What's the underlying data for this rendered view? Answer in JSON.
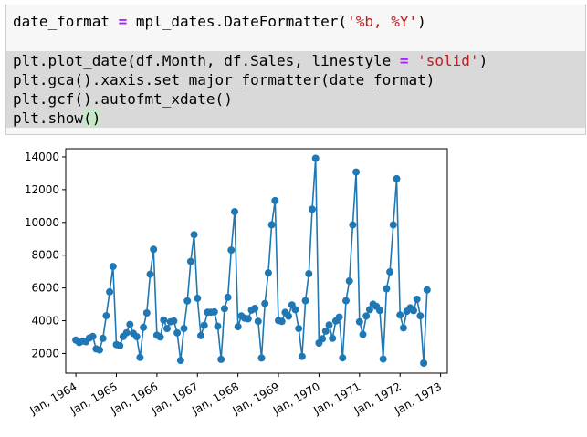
{
  "code_cell": {
    "lines": [
      {
        "parts": [
          {
            "t": "date_format ",
            "c": "plain"
          },
          {
            "t": "=",
            "c": "op"
          },
          {
            "t": " mpl_dates.DateFormatter(",
            "c": "plain"
          },
          {
            "t": "'%b, %Y'",
            "c": "str"
          },
          {
            "t": ")",
            "c": "plain"
          }
        ]
      },
      {
        "parts": []
      },
      {
        "parts": [
          {
            "t": "plt.plot_date(df.Month, df.Sales, linestyle ",
            "c": "plain"
          },
          {
            "t": "=",
            "c": "op"
          },
          {
            "t": " ",
            "c": "plain"
          },
          {
            "t": "'solid'",
            "c": "str"
          },
          {
            "t": ")",
            "c": "plain"
          }
        ]
      },
      {
        "parts": [
          {
            "t": "plt.gca().xaxis.set_major_formatter(date_format)",
            "c": "plain"
          }
        ]
      },
      {
        "parts": [
          {
            "t": "plt.gcf().autofmt_xdate()",
            "c": "plain"
          }
        ]
      },
      {
        "parts": [
          {
            "t": "plt.show",
            "c": "plain"
          },
          {
            "t": "()",
            "c": "paren"
          }
        ]
      }
    ]
  },
  "chart_data": {
    "type": "line",
    "title": "",
    "xlabel": "",
    "ylabel": "",
    "series_color": "#1f77b4",
    "x_tick_labels": [
      "Jan, 1964",
      "Jan, 1965",
      "Jan, 1966",
      "Jan, 1967",
      "Jan, 1968",
      "Jan, 1969",
      "Jan, 1970",
      "Jan, 1971",
      "Jan, 1972",
      "Jan, 1973"
    ],
    "y_ticks": [
      2000,
      4000,
      6000,
      8000,
      10000,
      12000,
      14000
    ],
    "ylim": [
      800,
      14500
    ],
    "xlim": [
      "1963-10",
      "1973-03"
    ],
    "x": [
      "1964-01",
      "1964-02",
      "1964-03",
      "1964-04",
      "1964-05",
      "1964-06",
      "1964-07",
      "1964-08",
      "1964-09",
      "1964-10",
      "1964-11",
      "1964-12",
      "1965-01",
      "1965-02",
      "1965-03",
      "1965-04",
      "1965-05",
      "1965-06",
      "1965-07",
      "1965-08",
      "1965-09",
      "1965-10",
      "1965-11",
      "1965-12",
      "1966-01",
      "1966-02",
      "1966-03",
      "1966-04",
      "1966-05",
      "1966-06",
      "1966-07",
      "1966-08",
      "1966-09",
      "1966-10",
      "1966-11",
      "1966-12",
      "1967-01",
      "1967-02",
      "1967-03",
      "1967-04",
      "1967-05",
      "1967-06",
      "1967-07",
      "1967-08",
      "1967-09",
      "1967-10",
      "1967-11",
      "1967-12",
      "1968-01",
      "1968-02",
      "1968-03",
      "1968-04",
      "1968-05",
      "1968-06",
      "1968-07",
      "1968-08",
      "1968-09",
      "1968-10",
      "1968-11",
      "1968-12",
      "1969-01",
      "1969-02",
      "1969-03",
      "1969-04",
      "1969-05",
      "1969-06",
      "1969-07",
      "1969-08",
      "1969-09",
      "1969-10",
      "1969-11",
      "1969-12",
      "1970-01",
      "1970-02",
      "1970-03",
      "1970-04",
      "1970-05",
      "1970-06",
      "1970-07",
      "1970-08",
      "1970-09",
      "1970-10",
      "1970-11",
      "1970-12",
      "1971-01",
      "1971-02",
      "1971-03",
      "1971-04",
      "1971-05",
      "1971-06",
      "1971-07",
      "1971-08",
      "1971-09",
      "1971-10",
      "1971-11",
      "1971-12",
      "1972-01",
      "1972-02",
      "1972-03",
      "1972-04",
      "1972-05",
      "1972-06",
      "1972-07",
      "1972-08",
      "1972-09"
    ],
    "values": [
      2815,
      2672,
      2755,
      2721,
      2946,
      3036,
      2282,
      2212,
      2922,
      4301,
      5764,
      7312,
      2541,
      2475,
      3031,
      3266,
      3776,
      3230,
      3028,
      1759,
      3595,
      4474,
      6838,
      8357,
      3113,
      3006,
      4047,
      3523,
      3937,
      3986,
      3260,
      1573,
      3528,
      5211,
      7614,
      9254,
      5375,
      3088,
      3718,
      4514,
      4520,
      4539,
      3663,
      1643,
      4739,
      5428,
      8314,
      10651,
      3633,
      4292,
      4154,
      4121,
      4647,
      4753,
      3965,
      1723,
      5048,
      6922,
      9858,
      11331,
      4016,
      3957,
      4510,
      4276,
      4968,
      4677,
      3523,
      1821,
      5222,
      6872,
      10803,
      13916,
      2639,
      2899,
      3370,
      3740,
      2927,
      3986,
      4217,
      1738,
      5221,
      6424,
      9842,
      13076,
      3934,
      3162,
      4286,
      4676,
      5010,
      4874,
      4633,
      1659,
      5951,
      6981,
      9851,
      12670,
      4348,
      3564,
      4577,
      4788,
      4618,
      5312,
      4298,
      1413,
      5877
    ]
  }
}
